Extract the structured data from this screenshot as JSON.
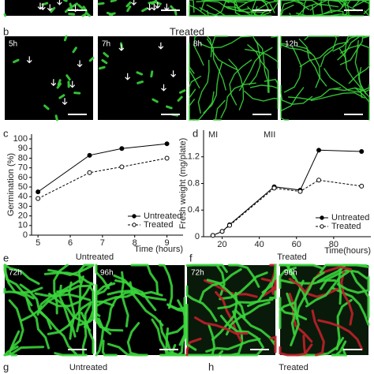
{
  "panel_labels": {
    "b": "b",
    "c": "c",
    "d": "d",
    "e": "e",
    "f": "f",
    "g": "g",
    "h": "h"
  },
  "section_titles": {
    "b": "Treated",
    "e": "Untreated",
    "f": "Treated",
    "g": "Untreated",
    "h": "Treated"
  },
  "time_labels": {
    "b": [
      "5h",
      "7h",
      "8h",
      "12h"
    ],
    "e": [
      "72h",
      "96h"
    ],
    "f": [
      "72h",
      "96h"
    ]
  },
  "chart_data": [
    {
      "type": "line",
      "ylabel": "Germination (%)",
      "xlabel": "Time (hours)",
      "xlim": [
        4.8,
        9.5
      ],
      "xticks": [
        5,
        6,
        7,
        8,
        9
      ],
      "ylim": [
        0,
        105
      ],
      "yticks": [
        0,
        10,
        20,
        30,
        40,
        50,
        60,
        70,
        80,
        90,
        100
      ],
      "legend": "lower right",
      "series": [
        {
          "name": "Untreated",
          "color": "#000000",
          "dashed": false,
          "marker": "filled",
          "x": [
            5,
            6.6,
            7.6,
            9
          ],
          "values": [
            45,
            83,
            90,
            95
          ]
        },
        {
          "name": "Treated",
          "color": "#000000",
          "dashed": true,
          "marker": "open",
          "x": [
            5,
            6.6,
            7.6,
            9
          ],
          "values": [
            38,
            65,
            71,
            80
          ]
        }
      ]
    },
    {
      "type": "line",
      "ylabel": "Fresh weight (mg/plate)",
      "xlabel": "Time(hours)",
      "annotations": [
        "MI",
        "MII"
      ],
      "xlim": [
        10,
        100
      ],
      "xticks": [
        20,
        40,
        60,
        80
      ],
      "ylim": [
        0,
        1.6
      ],
      "yticks": [
        0,
        0.4,
        0.8,
        1.2
      ],
      "legend": "lower right",
      "series": [
        {
          "name": "Untreated",
          "color": "#000000",
          "dashed": false,
          "marker": "filled",
          "x": [
            15,
            20,
            24,
            48,
            62,
            72,
            95
          ],
          "values": [
            0.02,
            0.08,
            0.18,
            0.75,
            0.7,
            1.3,
            1.28
          ]
        },
        {
          "name": "Treated",
          "color": "#000000",
          "dashed": true,
          "marker": "open",
          "x": [
            15,
            20,
            24,
            48,
            62,
            72,
            95
          ],
          "values": [
            0.02,
            0.08,
            0.17,
            0.73,
            0.68,
            0.85,
            0.76
          ]
        }
      ]
    }
  ]
}
